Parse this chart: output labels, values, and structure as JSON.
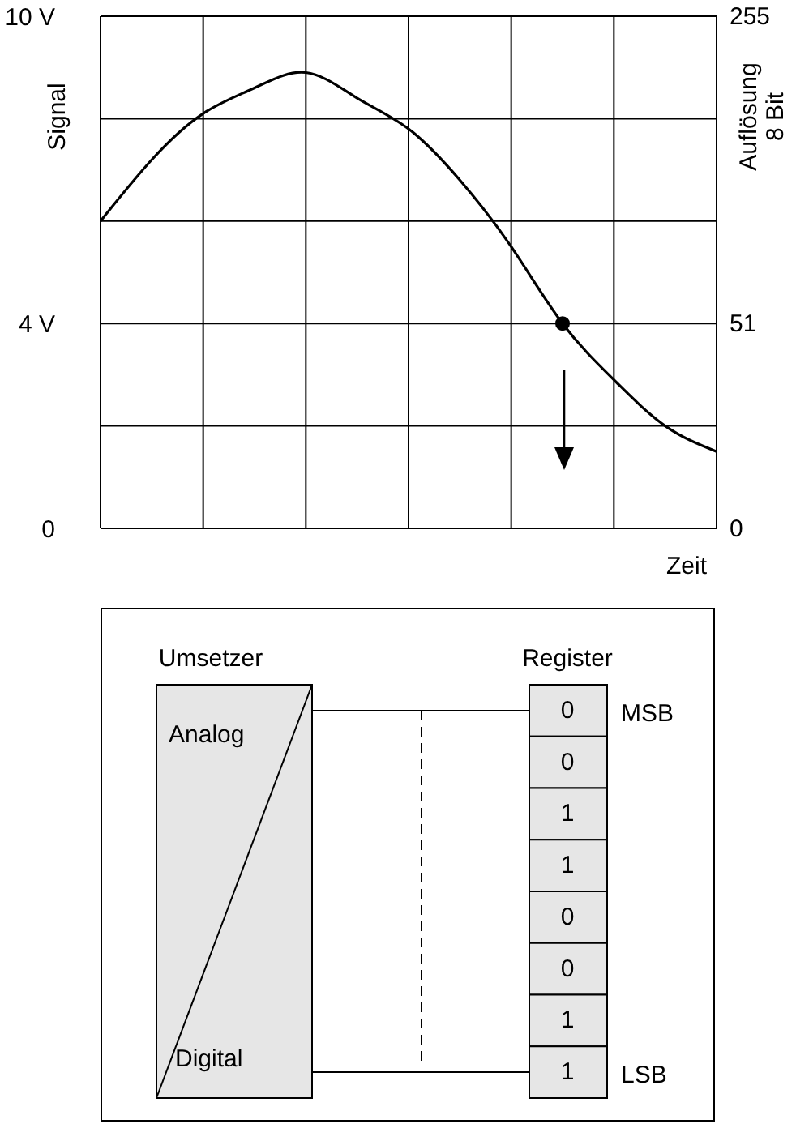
{
  "chart_data": [
    {
      "type": "line",
      "xlabel": "Zeit",
      "ylabel": "Signal",
      "y2label": "Auflösung 8 Bit",
      "categories": [
        null,
        null,
        null,
        null,
        null,
        null,
        null,
        null,
        null,
        null,
        null,
        null,
        null
      ],
      "series": [
        {
          "type": "line",
          "color": "#000000",
          "marker": "none",
          "values": [
            6.0,
            7.2,
            8.1,
            8.6,
            8.9,
            8.4,
            7.8,
            6.8,
            5.5,
            4.0,
            2.9,
            2.0,
            1.5
          ]
        },
        {
          "type": "scatter",
          "color": "#000000",
          "marker": "circle",
          "values": [
            null,
            null,
            null,
            null,
            null,
            null,
            null,
            null,
            null,
            4.0,
            null,
            null,
            null
          ]
        }
      ],
      "ylim": [
        0,
        10
      ],
      "yticks": [
        0,
        {
          "value": 4,
          "label": "4 V"
        },
        {
          "value": 10,
          "label": "10 V"
        },
        {
          "value": 2,
          "label": null
        },
        {
          "value": 6,
          "label": null
        },
        {
          "value": 8,
          "label": null
        }
      ],
      "annotations": [
        "255",
        "51",
        "0"
      ],
      "grid": true
    },
    {
      "type": "other",
      "annotations": [
        "Umsetzer",
        "Register",
        "Analog",
        "Digital",
        "MSB",
        "LSB"
      ],
      "values": [
        0,
        0,
        1,
        1,
        0,
        0,
        1,
        1
      ],
      "color": "#e6e6e6",
      "data_labels": true
    }
  ]
}
